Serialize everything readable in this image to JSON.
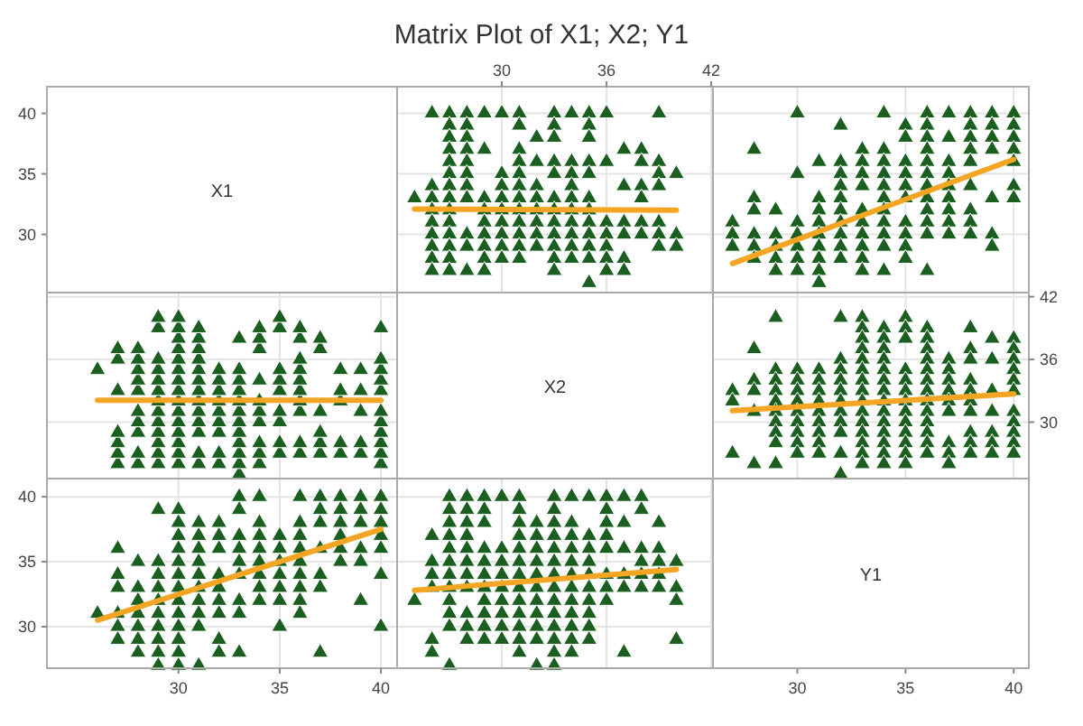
{
  "chart_data": [
    {
      "type": "other",
      "title": "Matrix Plot of X1; X2; Y1",
      "annotations": [
        "X1",
        "30",
        "35",
        "40"
      ]
    },
    {
      "type": "scatter",
      "marker": "triangle",
      "grid": true,
      "tick_labels": "x",
      "xlim": [
        24,
        42.1
      ],
      "xticks": [
        30,
        36,
        42
      ],
      "ylim": [
        25.2,
        42.2
      ],
      "yticks": [
        30,
        35,
        40
      ],
      "series": [
        {
          "type": "scatter",
          "color": "#1a5e20",
          "x": [
            25,
            26,
            26,
            26,
            26,
            26,
            26,
            26,
            26,
            26,
            27,
            27,
            27,
            27,
            27,
            27,
            27,
            27,
            27,
            27,
            27,
            27,
            27,
            27,
            28,
            28,
            28,
            28,
            28,
            28,
            28,
            28,
            28,
            28,
            28,
            29,
            29,
            29,
            29,
            29,
            29,
            29,
            29,
            29,
            30,
            30,
            30,
            30,
            30,
            30,
            30,
            30,
            30,
            31,
            31,
            31,
            31,
            31,
            31,
            31,
            31,
            31,
            31,
            31,
            31,
            32,
            32,
            32,
            32,
            32,
            32,
            32,
            32,
            33,
            33,
            33,
            33,
            33,
            33,
            33,
            33,
            33,
            33,
            33,
            33,
            34,
            34,
            34,
            34,
            34,
            34,
            34,
            34,
            34,
            34,
            35,
            35,
            35,
            35,
            35,
            35,
            35,
            35,
            35,
            35,
            35,
            35,
            36,
            36,
            36,
            36,
            36,
            36,
            36,
            37,
            37,
            37,
            37,
            37,
            37,
            38,
            38,
            38,
            38,
            38,
            38,
            39,
            39,
            39,
            39,
            39,
            39,
            39,
            40,
            40,
            40
          ],
          "values": [
            33,
            40,
            34,
            33,
            32,
            31,
            30,
            29,
            28,
            27,
            40,
            39,
            38,
            37,
            36,
            35,
            34,
            33,
            32,
            31,
            30,
            29,
            28,
            27,
            40,
            39,
            38,
            37,
            36,
            35,
            34,
            33,
            30,
            29,
            27,
            40,
            37,
            33,
            32,
            31,
            30,
            29,
            28,
            27,
            40,
            35,
            34,
            33,
            32,
            31,
            30,
            29,
            28,
            40,
            39,
            37,
            36,
            35,
            34,
            33,
            32,
            31,
            30,
            29,
            28,
            38,
            36,
            34,
            33,
            32,
            31,
            30,
            29,
            40,
            39,
            38,
            36,
            35,
            33,
            32,
            31,
            30,
            29,
            28,
            27,
            40,
            36,
            35,
            34,
            33,
            32,
            31,
            30,
            29,
            28,
            40,
            39,
            38,
            36,
            35,
            33,
            32,
            31,
            30,
            29,
            28,
            26,
            40,
            36,
            31,
            30,
            29,
            28,
            27,
            37,
            34,
            31,
            30,
            28,
            27,
            37,
            36,
            34,
            33,
            31,
            30,
            40,
            36,
            35,
            34,
            31,
            30,
            29,
            35,
            30,
            29
          ]
        },
        {
          "type": "line",
          "color": "#f5a524",
          "marker": "none",
          "x": [
            25,
            40
          ],
          "values": [
            32.1,
            32.0
          ]
        }
      ]
    },
    {
      "type": "scatter",
      "marker": "triangle",
      "grid": true,
      "tick_labels": false,
      "xlim": [
        26.1,
        40.7
      ],
      "xticks": [
        30,
        35,
        40
      ],
      "ylim": [
        25.2,
        42.2
      ],
      "yticks": [
        30,
        35,
        40
      ],
      "series": [
        {
          "type": "scatter",
          "color": "#1a5e20",
          "x": [
            27,
            27,
            27,
            28,
            28,
            28,
            28,
            28,
            28,
            29,
            29,
            29,
            29,
            29,
            30,
            30,
            30,
            30,
            30,
            30,
            30,
            31,
            31,
            31,
            31,
            31,
            31,
            31,
            31,
            31,
            32,
            32,
            32,
            32,
            32,
            32,
            32,
            32,
            32,
            32,
            33,
            33,
            33,
            33,
            33,
            33,
            33,
            33,
            33,
            33,
            34,
            34,
            34,
            34,
            34,
            34,
            34,
            34,
            34,
            34,
            34,
            35,
            35,
            35,
            35,
            35,
            35,
            35,
            35,
            35,
            35,
            36,
            36,
            36,
            36,
            36,
            36,
            36,
            36,
            36,
            36,
            36,
            36,
            37,
            37,
            37,
            37,
            37,
            37,
            37,
            37,
            37,
            38,
            38,
            38,
            38,
            38,
            38,
            38,
            38,
            38,
            39,
            39,
            39,
            39,
            39,
            39,
            39,
            40,
            40,
            40,
            40,
            40,
            40,
            40
          ],
          "values": [
            31,
            30,
            29,
            37,
            33,
            32,
            30,
            29,
            28,
            32,
            30,
            29,
            28,
            27,
            40,
            35,
            31,
            30,
            29,
            28,
            27,
            36,
            33,
            32,
            31,
            30,
            29,
            28,
            27,
            26,
            39,
            36,
            35,
            34,
            33,
            32,
            31,
            30,
            29,
            28,
            37,
            36,
            35,
            34,
            32,
            31,
            30,
            29,
            28,
            27,
            40,
            37,
            36,
            35,
            34,
            33,
            32,
            31,
            30,
            29,
            27,
            39,
            38,
            36,
            35,
            34,
            33,
            31,
            30,
            29,
            28,
            40,
            39,
            38,
            37,
            36,
            35,
            34,
            33,
            32,
            31,
            30,
            27,
            40,
            38,
            36,
            35,
            34,
            33,
            32,
            31,
            30,
            40,
            39,
            38,
            37,
            36,
            34,
            32,
            31,
            30,
            40,
            39,
            38,
            37,
            33,
            30,
            29,
            40,
            39,
            38,
            37,
            36,
            34,
            33
          ]
        },
        {
          "type": "line",
          "color": "#f5a524",
          "marker": "none",
          "x": [
            27,
            40
          ],
          "values": [
            27.6,
            36.2
          ]
        }
      ]
    },
    {
      "type": "scatter",
      "marker": "triangle",
      "grid": true,
      "tick_labels": false,
      "xlim": [
        23.5,
        40.8
      ],
      "xticks": [
        30,
        35,
        40
      ],
      "ylim": [
        24.6,
        42.4
      ],
      "yticks": [
        30,
        36,
        42
      ],
      "series": [
        {
          "type": "scatter",
          "color": "#1a5e20",
          "values": [
            25,
            26,
            26,
            26,
            26,
            26,
            26,
            26,
            26,
            26,
            27,
            27,
            27,
            27,
            27,
            27,
            27,
            27,
            27,
            27,
            27,
            27,
            27,
            27,
            28,
            28,
            28,
            28,
            28,
            28,
            28,
            28,
            28,
            28,
            28,
            29,
            29,
            29,
            29,
            29,
            29,
            29,
            29,
            29,
            30,
            30,
            30,
            30,
            30,
            30,
            30,
            30,
            30,
            31,
            31,
            31,
            31,
            31,
            31,
            31,
            31,
            31,
            31,
            31,
            31,
            32,
            32,
            32,
            32,
            32,
            32,
            32,
            32,
            33,
            33,
            33,
            33,
            33,
            33,
            33,
            33,
            33,
            33,
            33,
            33,
            34,
            34,
            34,
            34,
            34,
            34,
            34,
            34,
            34,
            34,
            35,
            35,
            35,
            35,
            35,
            35,
            35,
            35,
            35,
            35,
            35,
            35,
            36,
            36,
            36,
            36,
            36,
            36,
            36,
            37,
            37,
            37,
            37,
            37,
            37,
            38,
            38,
            38,
            38,
            38,
            38,
            39,
            39,
            39,
            39,
            39,
            39,
            39,
            40,
            40,
            40
          ],
          "x": [
            33,
            40,
            34,
            33,
            32,
            31,
            30,
            29,
            28,
            27,
            40,
            39,
            38,
            37,
            36,
            35,
            34,
            33,
            32,
            31,
            30,
            29,
            28,
            27,
            40,
            39,
            38,
            37,
            36,
            35,
            34,
            33,
            30,
            29,
            27,
            40,
            37,
            33,
            32,
            31,
            30,
            29,
            28,
            27,
            40,
            35,
            34,
            33,
            32,
            31,
            30,
            29,
            28,
            40,
            39,
            37,
            36,
            35,
            34,
            33,
            32,
            31,
            30,
            29,
            28,
            38,
            36,
            34,
            33,
            32,
            31,
            30,
            29,
            40,
            39,
            38,
            36,
            35,
            33,
            32,
            31,
            30,
            29,
            28,
            27,
            40,
            36,
            35,
            34,
            33,
            32,
            31,
            30,
            29,
            28,
            40,
            39,
            38,
            36,
            35,
            33,
            32,
            31,
            30,
            29,
            28,
            26,
            40,
            36,
            31,
            30,
            29,
            28,
            27,
            37,
            34,
            31,
            30,
            28,
            27,
            37,
            36,
            34,
            33,
            31,
            30,
            40,
            36,
            35,
            34,
            31,
            30,
            29,
            35,
            30,
            29
          ]
        },
        {
          "type": "line",
          "color": "#f5a524",
          "marker": "none",
          "x": [
            26,
            40
          ],
          "values": [
            32.1,
            32.1
          ]
        }
      ]
    },
    {
      "type": "other",
      "annotations": [
        "X2"
      ]
    },
    {
      "type": "scatter",
      "marker": "triangle",
      "grid": true,
      "tick_labels": "y",
      "xlim": [
        26.1,
        40.7
      ],
      "xticks": [
        30,
        35,
        40
      ],
      "ylim": [
        24.6,
        42.4
      ],
      "yticks": [
        30,
        36,
        42
      ],
      "series": [
        {
          "type": "scatter",
          "color": "#1a5e20",
          "x": [
            27,
            27,
            27,
            28,
            28,
            28,
            28,
            28,
            29,
            29,
            29,
            29,
            29,
            29,
            29,
            29,
            29,
            29,
            30,
            30,
            30,
            30,
            30,
            30,
            30,
            30,
            30,
            31,
            31,
            31,
            31,
            31,
            31,
            31,
            31,
            31,
            32,
            32,
            32,
            32,
            32,
            32,
            32,
            32,
            32,
            32,
            32,
            33,
            33,
            33,
            33,
            33,
            33,
            33,
            33,
            33,
            33,
            33,
            33,
            33,
            33,
            33,
            34,
            34,
            34,
            34,
            34,
            34,
            34,
            34,
            34,
            34,
            34,
            34,
            34,
            34,
            35,
            35,
            35,
            35,
            35,
            35,
            35,
            35,
            35,
            35,
            35,
            35,
            35,
            36,
            36,
            36,
            36,
            36,
            36,
            36,
            36,
            36,
            36,
            36,
            36,
            36,
            37,
            37,
            37,
            37,
            37,
            37,
            37,
            37,
            37,
            38,
            38,
            38,
            38,
            38,
            38,
            38,
            38,
            38,
            38,
            39,
            39,
            39,
            39,
            39,
            39,
            39,
            40,
            40,
            40,
            40,
            40,
            40,
            40,
            40,
            40,
            40,
            40
          ],
          "values": [
            33,
            32,
            27,
            37,
            34,
            33,
            31,
            26,
            40,
            35,
            34,
            33,
            32,
            31,
            30,
            29,
            28,
            26,
            35,
            34,
            33,
            32,
            31,
            30,
            29,
            28,
            27,
            35,
            34,
            33,
            32,
            31,
            30,
            29,
            28,
            27,
            40,
            36,
            35,
            34,
            33,
            32,
            31,
            30,
            29,
            27,
            25,
            40,
            39,
            38,
            37,
            36,
            35,
            34,
            33,
            32,
            31,
            30,
            29,
            28,
            27,
            26,
            39,
            38,
            37,
            36,
            35,
            34,
            33,
            32,
            31,
            30,
            29,
            28,
            27,
            26,
            40,
            39,
            38,
            35,
            34,
            33,
            32,
            31,
            30,
            29,
            28,
            27,
            26,
            39,
            38,
            37,
            36,
            35,
            34,
            33,
            32,
            31,
            30,
            29,
            28,
            27,
            36,
            35,
            34,
            33,
            32,
            31,
            28,
            27,
            26,
            39,
            37,
            36,
            34,
            33,
            32,
            31,
            29,
            28,
            27,
            38,
            36,
            33,
            31,
            29,
            28,
            27,
            38,
            37,
            36,
            35,
            34,
            33,
            31,
            30,
            29,
            28,
            27
          ]
        },
        {
          "type": "line",
          "color": "#f5a524",
          "marker": "none",
          "x": [
            27,
            40
          ],
          "values": [
            31.1,
            32.7
          ]
        }
      ]
    },
    {
      "type": "scatter",
      "marker": "triangle",
      "grid": true,
      "xlim": [
        23.5,
        40.8
      ],
      "xticks": [
        30,
        35,
        40
      ],
      "ylim": [
        26.8,
        41.4
      ],
      "yticks": [
        30,
        35,
        40
      ],
      "series": [
        {
          "type": "scatter",
          "color": "#1a5e20",
          "values": [
            27,
            27,
            27,
            28,
            28,
            28,
            28,
            28,
            28,
            29,
            29,
            29,
            29,
            29,
            30,
            30,
            30,
            30,
            30,
            30,
            30,
            31,
            31,
            31,
            31,
            31,
            31,
            31,
            31,
            31,
            32,
            32,
            32,
            32,
            32,
            32,
            32,
            32,
            32,
            32,
            33,
            33,
            33,
            33,
            33,
            33,
            33,
            33,
            33,
            33,
            34,
            34,
            34,
            34,
            34,
            34,
            34,
            34,
            34,
            34,
            34,
            35,
            35,
            35,
            35,
            35,
            35,
            35,
            35,
            35,
            35,
            36,
            36,
            36,
            36,
            36,
            36,
            36,
            36,
            36,
            36,
            36,
            36,
            37,
            37,
            37,
            37,
            37,
            37,
            37,
            37,
            37,
            38,
            38,
            38,
            38,
            38,
            38,
            38,
            38,
            38,
            39,
            39,
            39,
            39,
            39,
            39,
            39,
            40,
            40,
            40,
            40,
            40,
            40,
            40
          ],
          "x": [
            31,
            30,
            29,
            37,
            33,
            32,
            30,
            29,
            28,
            32,
            30,
            29,
            28,
            27,
            40,
            35,
            31,
            30,
            29,
            28,
            27,
            36,
            33,
            32,
            31,
            30,
            29,
            28,
            27,
            26,
            39,
            36,
            35,
            34,
            33,
            32,
            31,
            30,
            29,
            28,
            37,
            36,
            35,
            34,
            32,
            31,
            30,
            29,
            28,
            27,
            40,
            37,
            36,
            35,
            34,
            33,
            32,
            31,
            30,
            29,
            27,
            39,
            38,
            36,
            35,
            34,
            33,
            31,
            30,
            29,
            28,
            40,
            39,
            38,
            37,
            36,
            35,
            34,
            33,
            32,
            31,
            30,
            27,
            40,
            38,
            36,
            35,
            34,
            33,
            32,
            31,
            30,
            40,
            39,
            38,
            37,
            36,
            34,
            32,
            31,
            30,
            40,
            39,
            38,
            37,
            33,
            30,
            29,
            40,
            39,
            38,
            37,
            36,
            34,
            33
          ]
        },
        {
          "type": "line",
          "color": "#f5a524",
          "marker": "none",
          "x": [
            26,
            40
          ],
          "values": [
            30.5,
            37.5
          ]
        }
      ]
    },
    {
      "type": "scatter",
      "marker": "triangle",
      "grid": true,
      "tick_labels": false,
      "xlim": [
        24,
        42.1
      ],
      "xticks": [
        30,
        36,
        42
      ],
      "ylim": [
        26.8,
        41.4
      ],
      "yticks": [
        30,
        35,
        40
      ],
      "series": [
        {
          "type": "scatter",
          "color": "#1a5e20",
          "values": [
            27,
            27,
            27,
            28,
            28,
            28,
            28,
            28,
            29,
            29,
            29,
            29,
            29,
            29,
            29,
            29,
            29,
            29,
            30,
            30,
            30,
            30,
            30,
            30,
            30,
            30,
            30,
            31,
            31,
            31,
            31,
            31,
            31,
            31,
            31,
            31,
            32,
            32,
            32,
            32,
            32,
            32,
            32,
            32,
            32,
            32,
            32,
            33,
            33,
            33,
            33,
            33,
            33,
            33,
            33,
            33,
            33,
            33,
            33,
            33,
            33,
            33,
            34,
            34,
            34,
            34,
            34,
            34,
            34,
            34,
            34,
            34,
            34,
            34,
            34,
            34,
            35,
            35,
            35,
            35,
            35,
            35,
            35,
            35,
            35,
            35,
            35,
            35,
            35,
            36,
            36,
            36,
            36,
            36,
            36,
            36,
            36,
            36,
            36,
            36,
            36,
            36,
            37,
            37,
            37,
            37,
            37,
            37,
            37,
            37,
            37,
            38,
            38,
            38,
            38,
            38,
            38,
            38,
            38,
            38,
            38,
            39,
            39,
            39,
            39,
            39,
            39,
            39,
            40,
            40,
            40,
            40,
            40,
            40,
            40,
            40,
            40,
            40,
            40
          ],
          "x": [
            33,
            32,
            27,
            37,
            34,
            33,
            31,
            26,
            40,
            35,
            34,
            33,
            32,
            31,
            30,
            29,
            28,
            26,
            35,
            34,
            33,
            32,
            31,
            30,
            29,
            28,
            27,
            35,
            34,
            33,
            32,
            31,
            30,
            29,
            28,
            27,
            40,
            36,
            35,
            34,
            33,
            32,
            31,
            30,
            29,
            27,
            25,
            40,
            39,
            38,
            37,
            36,
            35,
            34,
            33,
            32,
            31,
            30,
            29,
            28,
            27,
            26,
            39,
            38,
            37,
            36,
            35,
            34,
            33,
            32,
            31,
            30,
            29,
            28,
            27,
            26,
            40,
            39,
            38,
            35,
            34,
            33,
            32,
            31,
            30,
            29,
            28,
            27,
            26,
            39,
            38,
            37,
            36,
            35,
            34,
            33,
            32,
            31,
            30,
            29,
            28,
            27,
            36,
            35,
            34,
            33,
            32,
            31,
            28,
            27,
            26,
            39,
            37,
            36,
            34,
            33,
            32,
            31,
            29,
            28,
            27,
            38,
            36,
            33,
            31,
            29,
            28,
            27,
            38,
            37,
            36,
            35,
            34,
            33,
            31,
            30,
            29,
            28,
            27
          ]
        },
        {
          "type": "line",
          "color": "#f5a524",
          "marker": "none",
          "x": [
            25,
            40
          ],
          "values": [
            32.8,
            34.4
          ]
        }
      ]
    },
    {
      "type": "other",
      "annotations": [
        "Y1",
        "30",
        "35",
        "40"
      ]
    }
  ]
}
